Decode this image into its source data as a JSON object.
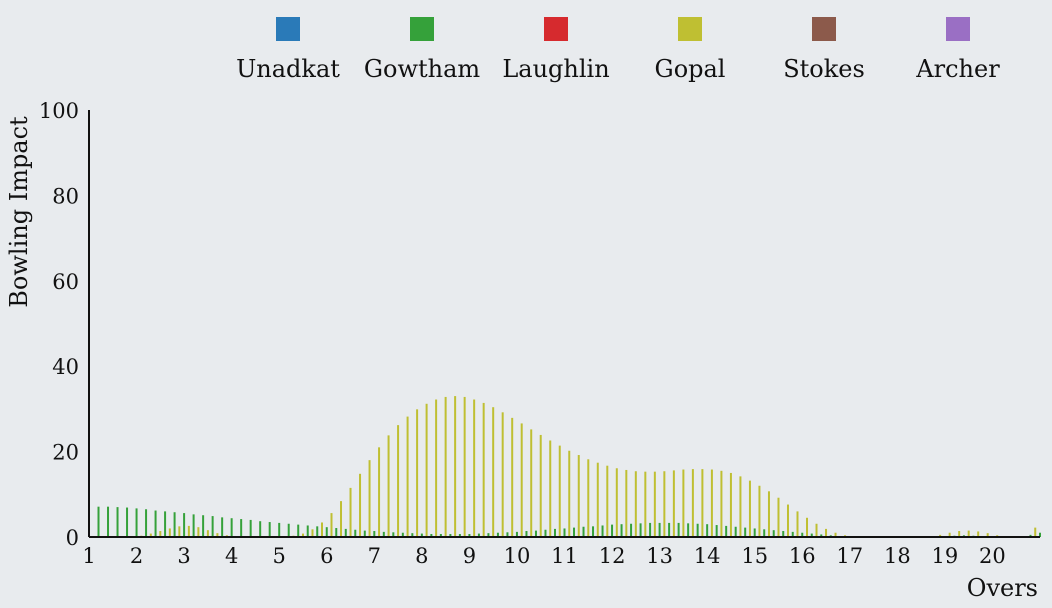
{
  "chart_data": {
    "type": "bar",
    "xlabel": "Overs",
    "ylabel": "Bowling Impact",
    "xlim": [
      1,
      21
    ],
    "ylim": [
      0,
      100
    ],
    "yticks": [
      "0",
      "20",
      "40",
      "60",
      "80",
      "100"
    ],
    "xticks": [
      "1",
      "2",
      "3",
      "4",
      "5",
      "6",
      "7",
      "8",
      "9",
      "10",
      "11",
      "12",
      "13",
      "14",
      "15",
      "16",
      "17",
      "18",
      "19",
      "20"
    ],
    "grid": false,
    "legend_position": "top",
    "series": [
      {
        "name": "Unadkat",
        "color": "#2a7ab8",
        "points": []
      },
      {
        "name": "Gowtham",
        "color": "#35a13a",
        "points": [
          [
            1.0,
            7.0
          ],
          [
            1.2,
            7.1
          ],
          [
            1.4,
            7.1
          ],
          [
            1.6,
            7.0
          ],
          [
            1.8,
            6.9
          ],
          [
            2.0,
            6.7
          ],
          [
            2.2,
            6.5
          ],
          [
            2.4,
            6.2
          ],
          [
            2.6,
            6.0
          ],
          [
            2.8,
            5.8
          ],
          [
            3.0,
            5.6
          ],
          [
            3.2,
            5.3
          ],
          [
            3.4,
            5.1
          ],
          [
            3.6,
            4.9
          ],
          [
            3.8,
            4.6
          ],
          [
            4.0,
            4.4
          ],
          [
            4.2,
            4.2
          ],
          [
            4.4,
            4.0
          ],
          [
            4.6,
            3.7
          ],
          [
            4.8,
            3.5
          ],
          [
            5.0,
            3.3
          ],
          [
            5.2,
            3.1
          ],
          [
            5.4,
            2.9
          ],
          [
            5.6,
            2.7
          ],
          [
            5.8,
            2.5
          ],
          [
            6.0,
            2.3
          ],
          [
            6.2,
            2.1
          ],
          [
            6.4,
            1.9
          ],
          [
            6.6,
            1.7
          ],
          [
            6.8,
            1.5
          ],
          [
            7.0,
            1.4
          ],
          [
            7.2,
            1.2
          ],
          [
            7.4,
            1.1
          ],
          [
            7.6,
            1.0
          ],
          [
            7.8,
            0.9
          ],
          [
            8.0,
            0.8
          ],
          [
            8.2,
            0.7
          ],
          [
            8.4,
            0.7
          ],
          [
            8.6,
            0.7
          ],
          [
            8.8,
            0.7
          ],
          [
            9.0,
            0.7
          ],
          [
            9.2,
            0.8
          ],
          [
            9.4,
            0.9
          ],
          [
            9.6,
            1.0
          ],
          [
            9.8,
            1.1
          ],
          [
            10.0,
            1.2
          ],
          [
            10.2,
            1.4
          ],
          [
            10.4,
            1.5
          ],
          [
            10.6,
            1.7
          ],
          [
            10.8,
            1.9
          ],
          [
            11.0,
            2.0
          ],
          [
            11.2,
            2.2
          ],
          [
            11.4,
            2.4
          ],
          [
            11.6,
            2.5
          ],
          [
            11.8,
            2.7
          ],
          [
            12.0,
            2.9
          ],
          [
            12.2,
            3.0
          ],
          [
            12.4,
            3.1
          ],
          [
            12.6,
            3.2
          ],
          [
            12.8,
            3.3
          ],
          [
            13.0,
            3.3
          ],
          [
            13.2,
            3.3
          ],
          [
            13.4,
            3.3
          ],
          [
            13.6,
            3.2
          ],
          [
            13.8,
            3.1
          ],
          [
            14.0,
            3.0
          ],
          [
            14.2,
            2.8
          ],
          [
            14.4,
            2.6
          ],
          [
            14.6,
            2.4
          ],
          [
            14.8,
            2.2
          ],
          [
            15.0,
            2.0
          ],
          [
            15.2,
            1.8
          ],
          [
            15.4,
            1.6
          ],
          [
            15.6,
            1.4
          ],
          [
            15.8,
            1.2
          ],
          [
            16.0,
            1.0
          ],
          [
            16.2,
            0.8
          ],
          [
            16.4,
            0.6
          ],
          [
            16.6,
            0.4
          ],
          [
            16.8,
            0.2
          ],
          [
            17.0,
            0.1
          ],
          [
            17.2,
            0.0
          ],
          [
            17.4,
            0.0
          ],
          [
            17.6,
            0.0
          ],
          [
            17.8,
            0.0
          ],
          [
            18.0,
            0.0
          ],
          [
            18.2,
            0.0
          ],
          [
            18.4,
            0.0
          ],
          [
            18.6,
            0.0
          ],
          [
            18.8,
            0.0
          ],
          [
            19.0,
            0.1
          ],
          [
            19.2,
            0.3
          ],
          [
            19.4,
            0.4
          ],
          [
            19.6,
            0.3
          ],
          [
            19.8,
            0.2
          ],
          [
            20.0,
            0.1
          ],
          [
            20.2,
            0.0
          ],
          [
            20.4,
            0.0
          ],
          [
            20.6,
            0.0
          ],
          [
            20.8,
            0.5
          ],
          [
            21.0,
            1.0
          ]
        ]
      },
      {
        "name": "Laughlin",
        "color": "#d62a2e",
        "points": []
      },
      {
        "name": "Gopal",
        "color": "#bfbf32",
        "points": [
          [
            1.1,
            0.0
          ],
          [
            1.3,
            0.0
          ],
          [
            1.5,
            0.0
          ],
          [
            1.7,
            0.0
          ],
          [
            1.9,
            0.0
          ],
          [
            2.1,
            0.3
          ],
          [
            2.3,
            0.8
          ],
          [
            2.5,
            1.4
          ],
          [
            2.7,
            2.0
          ],
          [
            2.9,
            2.5
          ],
          [
            3.1,
            2.6
          ],
          [
            3.3,
            2.3
          ],
          [
            3.5,
            1.6
          ],
          [
            3.7,
            0.9
          ],
          [
            3.9,
            0.4
          ],
          [
            4.1,
            0.1
          ],
          [
            4.3,
            0.0
          ],
          [
            4.5,
            0.0
          ],
          [
            4.7,
            0.0
          ],
          [
            4.9,
            0.0
          ],
          [
            5.1,
            0.1
          ],
          [
            5.3,
            0.3
          ],
          [
            5.5,
            0.8
          ],
          [
            5.7,
            1.8
          ],
          [
            5.9,
            3.4
          ],
          [
            6.1,
            5.6
          ],
          [
            6.3,
            8.4
          ],
          [
            6.5,
            11.5
          ],
          [
            6.7,
            14.8
          ],
          [
            6.9,
            18.0
          ],
          [
            7.1,
            21.0
          ],
          [
            7.3,
            23.8
          ],
          [
            7.5,
            26.2
          ],
          [
            7.7,
            28.2
          ],
          [
            7.9,
            29.9
          ],
          [
            8.1,
            31.2
          ],
          [
            8.3,
            32.2
          ],
          [
            8.5,
            32.8
          ],
          [
            8.7,
            33.0
          ],
          [
            8.9,
            32.8
          ],
          [
            9.1,
            32.2
          ],
          [
            9.3,
            31.4
          ],
          [
            9.5,
            30.4
          ],
          [
            9.7,
            29.2
          ],
          [
            9.9,
            27.9
          ],
          [
            10.1,
            26.6
          ],
          [
            10.3,
            25.2
          ],
          [
            10.5,
            23.9
          ],
          [
            10.7,
            22.6
          ],
          [
            10.9,
            21.4
          ],
          [
            11.1,
            20.2
          ],
          [
            11.3,
            19.2
          ],
          [
            11.5,
            18.2
          ],
          [
            11.7,
            17.4
          ],
          [
            11.9,
            16.7
          ],
          [
            12.1,
            16.1
          ],
          [
            12.3,
            15.7
          ],
          [
            12.5,
            15.4
          ],
          [
            12.7,
            15.3
          ],
          [
            12.9,
            15.3
          ],
          [
            13.1,
            15.4
          ],
          [
            13.3,
            15.6
          ],
          [
            13.5,
            15.8
          ],
          [
            13.7,
            15.9
          ],
          [
            13.9,
            15.9
          ],
          [
            14.1,
            15.8
          ],
          [
            14.3,
            15.5
          ],
          [
            14.5,
            15.0
          ],
          [
            14.7,
            14.2
          ],
          [
            14.9,
            13.2
          ],
          [
            15.1,
            12.0
          ],
          [
            15.3,
            10.7
          ],
          [
            15.5,
            9.2
          ],
          [
            15.7,
            7.6
          ],
          [
            15.9,
            6.0
          ],
          [
            16.1,
            4.5
          ],
          [
            16.3,
            3.1
          ],
          [
            16.5,
            1.9
          ],
          [
            16.7,
            1.0
          ],
          [
            16.9,
            0.4
          ],
          [
            17.1,
            0.1
          ],
          [
            17.3,
            0.0
          ],
          [
            17.5,
            0.0
          ],
          [
            17.7,
            0.0
          ],
          [
            17.9,
            0.0
          ],
          [
            18.1,
            0.0
          ],
          [
            18.3,
            0.0
          ],
          [
            18.5,
            0.0
          ],
          [
            18.7,
            0.1
          ],
          [
            18.9,
            0.5
          ],
          [
            19.1,
            1.0
          ],
          [
            19.3,
            1.4
          ],
          [
            19.5,
            1.5
          ],
          [
            19.7,
            1.3
          ],
          [
            19.9,
            0.9
          ],
          [
            20.1,
            0.4
          ],
          [
            20.3,
            0.1
          ],
          [
            20.5,
            0.0
          ],
          [
            20.7,
            0.0
          ],
          [
            20.9,
            2.2
          ]
        ]
      },
      {
        "name": "Stokes",
        "color": "#8c5a4b",
        "points": []
      },
      {
        "name": "Archer",
        "color": "#9a6fc4",
        "points": []
      }
    ]
  }
}
